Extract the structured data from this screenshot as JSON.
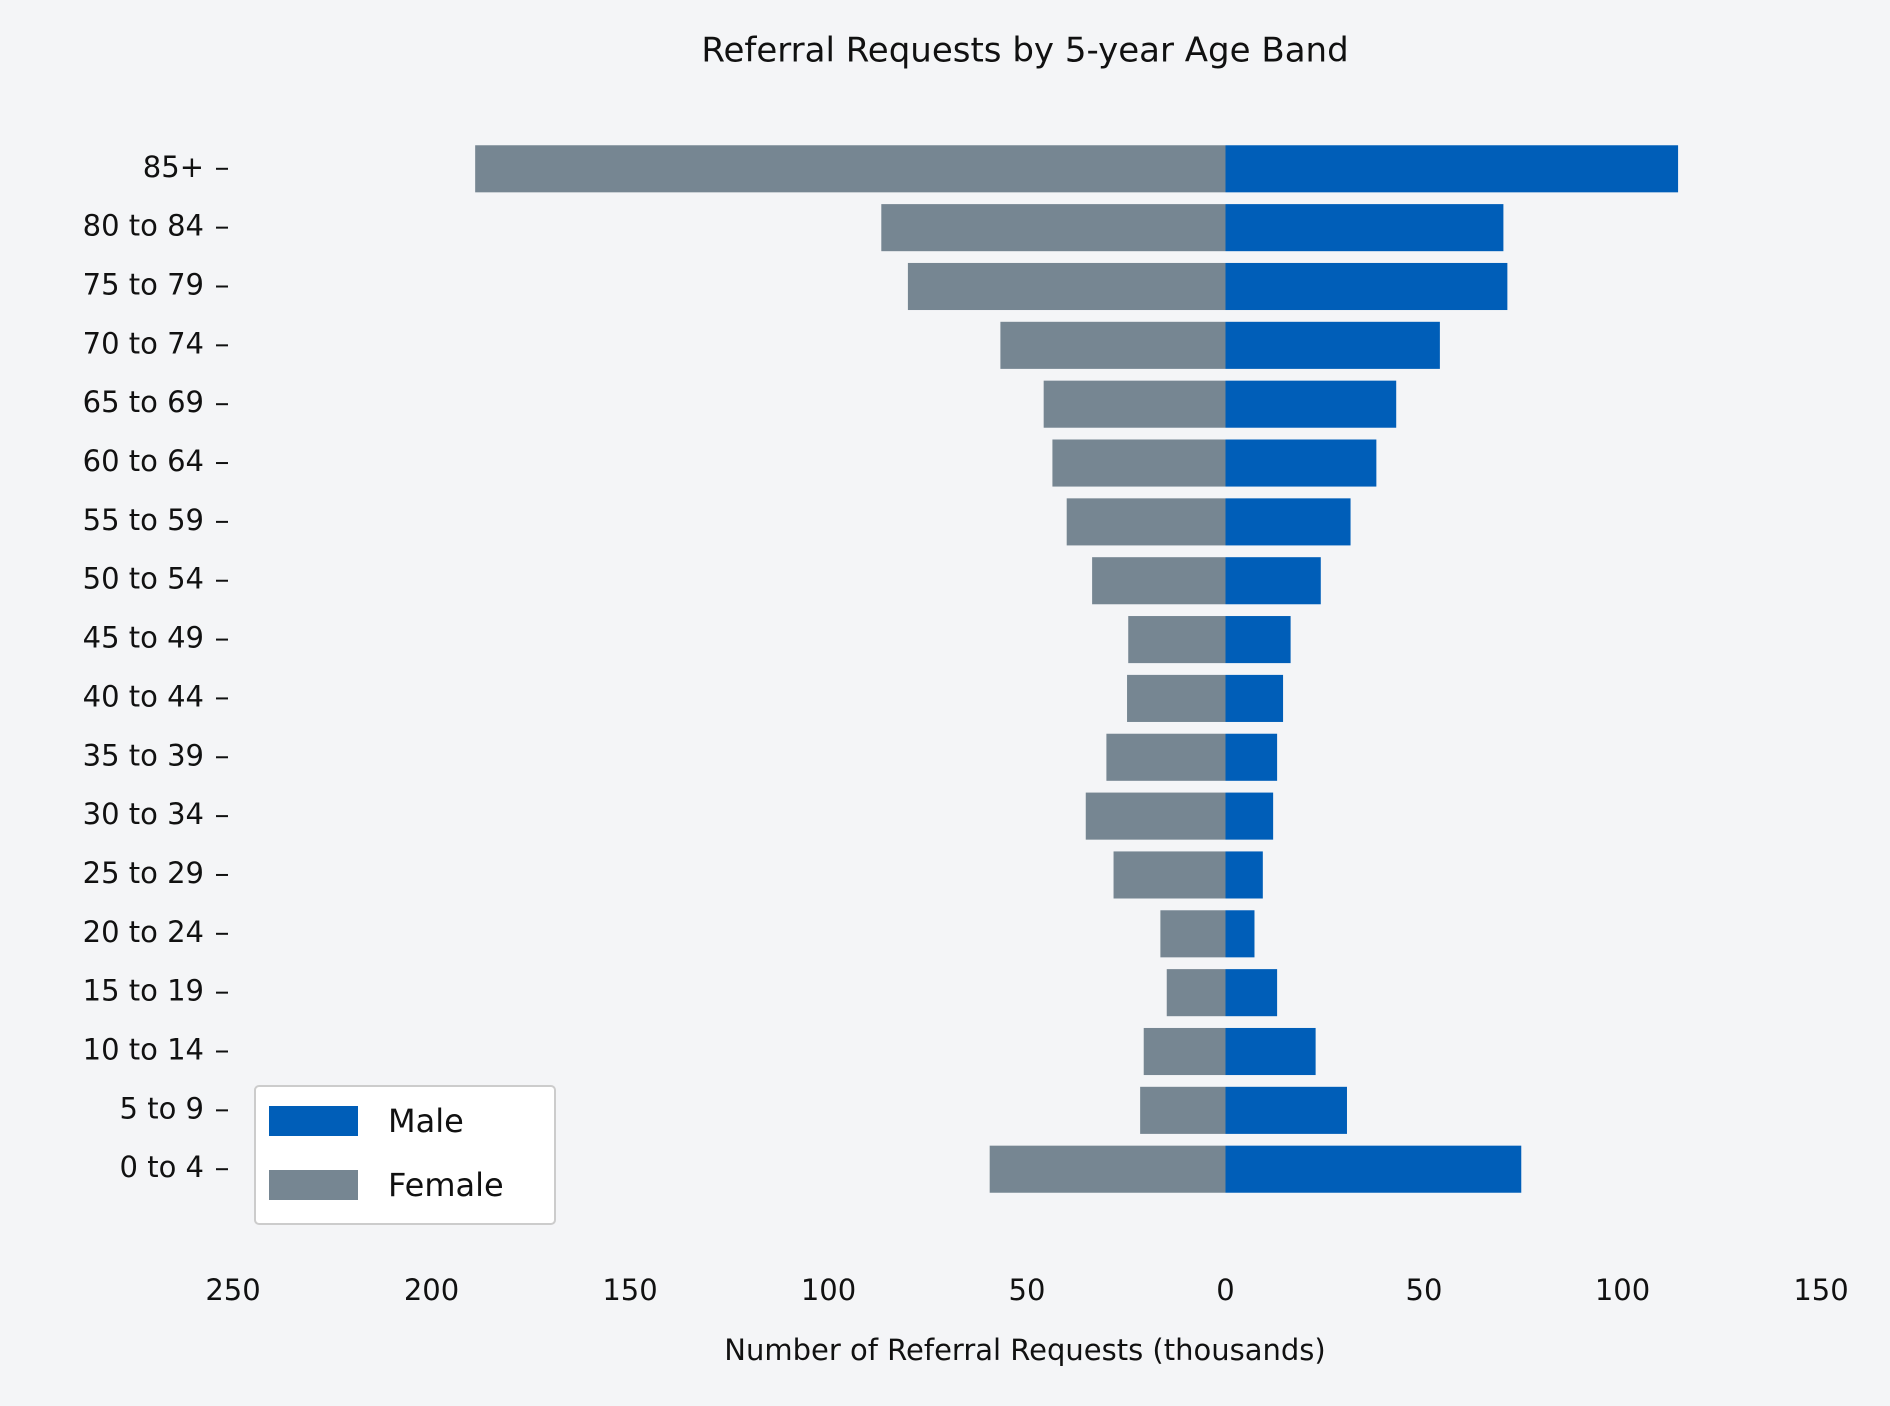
{
  "chart_data": {
    "type": "barh",
    "title": "Referral Requests by 5-year Age Band",
    "xlabel": "Number of Referral Requests (thousands)",
    "categories": [
      "0 to 4",
      "5 to 9",
      "10 to 14",
      "15 to 19",
      "20 to 24",
      "25 to 29",
      "30 to 34",
      "35 to 39",
      "40 to 44",
      "45 to 49",
      "50 to 54",
      "55 to 59",
      "60 to 64",
      "65 to 69",
      "70 to 74",
      "75 to 79",
      "80 to 84",
      "85+"
    ],
    "series": [
      {
        "name": "Male",
        "color": "#005eb8",
        "values": [
          74.5,
          30.6,
          22.7,
          13,
          7.3,
          9.4,
          12,
          13,
          14.5,
          16.4,
          24,
          31.5,
          38,
          43,
          54,
          71,
          70,
          114
        ]
      },
      {
        "name": "Female",
        "color": "#768692",
        "values": [
          -59.4,
          -21.5,
          -20.6,
          -14.8,
          -16.4,
          -28.2,
          -35.2,
          -30,
          -24.8,
          -24.5,
          -33.6,
          -40,
          -43.6,
          -45.8,
          -56.7,
          -80,
          -86.7,
          -189
        ]
      }
    ],
    "xlim": [
      -250,
      150
    ],
    "xticks": [
      {
        "value": -250,
        "label": "250"
      },
      {
        "value": -200,
        "label": "200"
      },
      {
        "value": -150,
        "label": "150"
      },
      {
        "value": -100,
        "label": "100"
      },
      {
        "value": -50,
        "label": "50"
      },
      0,
      50,
      100,
      150
    ],
    "legend": "lower left"
  }
}
